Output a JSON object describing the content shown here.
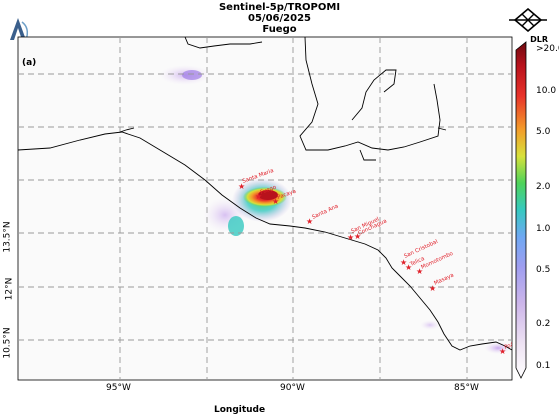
{
  "header": {
    "line1": "Sentinel-5p/TROPOMI",
    "line2": "05/06/2025",
    "line3": "Fuego"
  },
  "logos": {
    "right": "DLR"
  },
  "panel_label": "(a)",
  "axes": {
    "x_ticks": [
      "95°W",
      "90°W",
      "85°W"
    ],
    "y_ticks": [
      "13.5°N",
      "12°N",
      "10.5°N"
    ],
    "xlabel": "Longitude"
  },
  "colorbar": {
    "ticks": [
      ">20.0",
      "10.0",
      "5.0",
      "2.0",
      "1.0",
      "0.5",
      "0.2",
      "0.1"
    ],
    "colors": [
      "#e6d9ee",
      "#b79ae0",
      "#7ea1f2",
      "#36c9c0",
      "#4ed35a",
      "#d7e13b",
      "#f39c2a",
      "#e8322a",
      "#b8121c",
      "#7a0c12"
    ]
  },
  "volcanoes": [
    {
      "name": "Santa Maria"
    },
    {
      "name": "Fuego"
    },
    {
      "name": "Pacaya"
    },
    {
      "name": "Santa Ana"
    },
    {
      "name": "San Miguel"
    },
    {
      "name": "Conchagua"
    },
    {
      "name": "San Cristobal"
    },
    {
      "name": "Telica"
    },
    {
      "name": "Momotombo"
    },
    {
      "name": "Masaya"
    },
    {
      "name": "Poás"
    }
  ],
  "colors": {
    "marker": "#e0202a",
    "grid": "#9a9a9a"
  }
}
